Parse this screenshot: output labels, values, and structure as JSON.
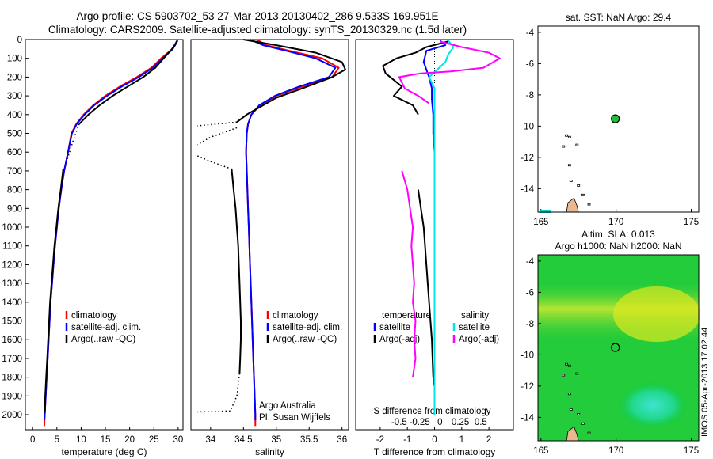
{
  "header": {
    "line1": "Argo profile: CS 5903702_53 27-Mar-2013 20130402_286 9.533S 169.951E",
    "line2": "Climatology: CARS2009. Satellite-adjusted climatology: synTS_20130329.nc (1.5d later)"
  },
  "side_note": "IMOS 05-Apr-2013 17:02:44",
  "colors": {
    "climatology": "#ff0000",
    "satellite": "#0000ff",
    "argo": "#000000",
    "sal_satellite": "#00e5e5",
    "sal_argo": "#ff00ff"
  },
  "chart_data": [
    {
      "id": "temperature",
      "type": "line",
      "xlabel": "temperature (deg C)",
      "xlim": [
        -1.5,
        31
      ],
      "xticks": [
        0,
        5,
        10,
        15,
        20,
        25,
        30
      ],
      "ylim": [
        2080,
        0
      ],
      "yticks": [
        0,
        100,
        200,
        300,
        400,
        500,
        600,
        700,
        800,
        900,
        1000,
        1100,
        1200,
        1300,
        1400,
        1500,
        1600,
        1700,
        1800,
        1900,
        2000
      ],
      "legend": [
        "climatology",
        "satellite-adj. clim.",
        "Argo(..raw -QC)"
      ],
      "series": [
        {
          "name": "climatology",
          "color": "#ff0000",
          "points": [
            [
              29.8,
              5
            ],
            [
              29.5,
              20
            ],
            [
              28.8,
              50
            ],
            [
              26.5,
              100
            ],
            [
              24.5,
              150
            ],
            [
              21.5,
              200
            ],
            [
              18.0,
              250
            ],
            [
              15.0,
              300
            ],
            [
              12.5,
              350
            ],
            [
              10.5,
              400
            ],
            [
              9.0,
              450
            ],
            [
              8.0,
              500
            ],
            [
              7.3,
              600
            ],
            [
              6.5,
              700
            ],
            [
              5.9,
              800
            ],
            [
              5.4,
              900
            ],
            [
              5.0,
              1000
            ],
            [
              4.6,
              1100
            ],
            [
              4.3,
              1200
            ],
            [
              4.0,
              1300
            ],
            [
              3.7,
              1400
            ],
            [
              3.5,
              1500
            ],
            [
              3.3,
              1600
            ],
            [
              3.1,
              1700
            ],
            [
              2.9,
              1800
            ],
            [
              2.7,
              1900
            ],
            [
              2.5,
              2000
            ],
            [
              2.4,
              2060
            ]
          ]
        },
        {
          "name": "satellite-adj. clim.",
          "color": "#0000ff",
          "points": [
            [
              29.9,
              5
            ],
            [
              29.6,
              20
            ],
            [
              28.9,
              50
            ],
            [
              26.8,
              100
            ],
            [
              24.8,
              150
            ],
            [
              21.9,
              200
            ],
            [
              18.4,
              250
            ],
            [
              15.3,
              300
            ],
            [
              12.7,
              350
            ],
            [
              10.7,
              400
            ],
            [
              9.1,
              450
            ],
            [
              8.1,
              500
            ],
            [
              7.3,
              600
            ],
            [
              6.5,
              700
            ],
            [
              5.9,
              800
            ],
            [
              5.4,
              900
            ],
            [
              5.0,
              1000
            ],
            [
              4.6,
              1100
            ],
            [
              4.3,
              1200
            ],
            [
              4.0,
              1300
            ],
            [
              3.7,
              1400
            ],
            [
              3.5,
              1500
            ],
            [
              3.3,
              1600
            ],
            [
              3.1,
              1700
            ],
            [
              2.9,
              1800
            ],
            [
              2.7,
              1900
            ],
            [
              2.5,
              2000
            ],
            [
              2.4,
              2030
            ]
          ]
        },
        {
          "name": "Argo(..raw -QC)",
          "color": "#000000",
          "points": [
            [
              29.8,
              5
            ],
            [
              29.4,
              25
            ],
            [
              28.6,
              55
            ],
            [
              27.0,
              100
            ],
            [
              25.3,
              150
            ],
            [
              22.8,
              200
            ],
            [
              19.6,
              250
            ],
            [
              16.5,
              300
            ],
            [
              13.8,
              350
            ],
            [
              11.5,
              400
            ],
            [
              9.6,
              450
            ]
          ]
        },
        {
          "name": "Argo(..raw -QC) deep",
          "color": "#000000",
          "points": [
            [
              6.3,
              690
            ],
            [
              5.8,
              800
            ],
            [
              5.3,
              900
            ],
            [
              4.9,
              1000
            ],
            [
              4.5,
              1100
            ],
            [
              4.2,
              1200
            ],
            [
              3.9,
              1300
            ],
            [
              3.6,
              1400
            ],
            [
              3.4,
              1500
            ],
            [
              3.2,
              1600
            ],
            [
              3.0,
              1700
            ],
            [
              2.8,
              1800
            ],
            [
              2.6,
              1900
            ],
            [
              2.5,
              1990
            ]
          ]
        }
      ]
    },
    {
      "id": "salinity",
      "type": "line",
      "xlabel": "salinity",
      "xlim": [
        33.7,
        36.1
      ],
      "xticks": [
        34,
        34.5,
        35,
        35.5,
        36
      ],
      "ylim": [
        2080,
        0
      ],
      "legend": [
        "climatology",
        "satellite-adj. clim.",
        "Argo(..raw -QC)"
      ],
      "annotation": [
        "Argo Australia",
        "PI: Susan Wijffels"
      ],
      "series": [
        {
          "name": "climatology",
          "color": "#ff0000",
          "points": [
            [
              34.7,
              0
            ],
            [
              34.85,
              30
            ],
            [
              35.2,
              60
            ],
            [
              35.7,
              100
            ],
            [
              35.95,
              150
            ],
            [
              35.85,
              200
            ],
            [
              35.4,
              250
            ],
            [
              35.0,
              300
            ],
            [
              34.75,
              350
            ],
            [
              34.62,
              400
            ],
            [
              34.57,
              450
            ],
            [
              34.55,
              500
            ],
            [
              34.54,
              600
            ],
            [
              34.55,
              700
            ],
            [
              34.56,
              800
            ],
            [
              34.57,
              900
            ],
            [
              34.58,
              1000
            ],
            [
              34.6,
              1200
            ],
            [
              34.62,
              1400
            ],
            [
              34.64,
              1600
            ],
            [
              34.66,
              1800
            ],
            [
              34.68,
              2000
            ],
            [
              34.68,
              2060
            ]
          ]
        },
        {
          "name": "satellite-adj. clim.",
          "color": "#0000ff",
          "points": [
            [
              34.6,
              0
            ],
            [
              34.8,
              30
            ],
            [
              35.15,
              60
            ],
            [
              35.6,
              100
            ],
            [
              35.9,
              150
            ],
            [
              35.8,
              200
            ],
            [
              35.35,
              250
            ],
            [
              34.98,
              300
            ],
            [
              34.74,
              350
            ],
            [
              34.62,
              400
            ],
            [
              34.57,
              450
            ],
            [
              34.55,
              500
            ],
            [
              34.54,
              600
            ],
            [
              34.55,
              700
            ],
            [
              34.56,
              800
            ],
            [
              34.57,
              900
            ],
            [
              34.58,
              1000
            ],
            [
              34.6,
              1200
            ],
            [
              34.62,
              1400
            ],
            [
              34.64,
              1600
            ],
            [
              34.66,
              1800
            ],
            [
              34.68,
              2000
            ],
            [
              34.68,
              2030
            ]
          ]
        },
        {
          "name": "Argo(..raw -QC)",
          "color": "#000000",
          "points": [
            [
              34.5,
              0
            ],
            [
              35.0,
              30
            ],
            [
              35.6,
              70
            ],
            [
              36.0,
              120
            ],
            [
              36.05,
              160
            ],
            [
              35.85,
              200
            ],
            [
              35.4,
              260
            ],
            [
              35.0,
              310
            ],
            [
              34.75,
              360
            ],
            [
              34.55,
              400
            ],
            [
              34.4,
              440
            ]
          ]
        },
        {
          "name": "Argo(..raw -QC) deep",
          "color": "#000000",
          "points": [
            [
              34.32,
              690
            ],
            [
              34.35,
              800
            ],
            [
              34.38,
              900
            ],
            [
              34.4,
              1000
            ],
            [
              34.42,
              1100
            ],
            [
              34.43,
              1200
            ],
            [
              34.44,
              1300
            ],
            [
              34.45,
              1400
            ],
            [
              34.46,
              1500
            ],
            [
              34.46,
              1600
            ],
            [
              34.45,
              1700
            ],
            [
              34.44,
              1780
            ]
          ]
        }
      ]
    },
    {
      "id": "difference",
      "type": "line",
      "xlabel": "T difference from climatology",
      "x2label": "S difference from climatology",
      "xlim": [
        -2.9,
        2.9
      ],
      "xticks": [
        -2,
        -1,
        0,
        1,
        2
      ],
      "x2ticks": [
        "-0.5",
        "-0.25",
        "0",
        "0.25",
        "0.5"
      ],
      "ylim": [
        2080,
        0
      ],
      "legend": [
        "temperature",
        "satellite",
        "Argo(-adj)",
        "salinity",
        "satellite",
        "Argo(-adj)"
      ],
      "series": [
        {
          "name": "temperature satellite",
          "color": "#0000ff",
          "points": [
            [
              0.2,
              5
            ],
            [
              0.4,
              30
            ],
            [
              -0.3,
              60
            ],
            [
              -0.4,
              120
            ],
            [
              -0.2,
              200
            ],
            [
              -0.1,
              260
            ],
            [
              -0.1,
              320
            ],
            [
              -0.05,
              400
            ],
            [
              -0.05,
              500
            ],
            [
              0,
              600
            ],
            [
              0,
              800
            ],
            [
              0,
              1000
            ],
            [
              0,
              1500
            ],
            [
              0,
              2000
            ]
          ]
        },
        {
          "name": "temperature Argo(-adj)",
          "color": "#000000",
          "points": [
            [
              0.5,
              10
            ],
            [
              -0.3,
              40
            ],
            [
              -0.7,
              70
            ],
            [
              -1.4,
              100
            ],
            [
              -1.9,
              140
            ],
            [
              -1.8,
              180
            ],
            [
              -1.2,
              250
            ],
            [
              -1.5,
              300
            ],
            [
              -0.8,
              350
            ],
            [
              -0.6,
              400
            ]
          ]
        },
        {
          "name": "temperature Argo(-adj) deep",
          "color": "#000000",
          "points": [
            [
              -0.6,
              800
            ],
            [
              -0.5,
              900
            ],
            [
              -0.4,
              1000
            ],
            [
              -0.35,
              1100
            ],
            [
              -0.3,
              1200
            ],
            [
              -0.2,
              1400
            ],
            [
              -0.1,
              1600
            ],
            [
              -0.05,
              1800
            ],
            [
              0,
              1850
            ]
          ]
        },
        {
          "name": "salinity satellite",
          "color": "#00e5e5",
          "points": [
            [
              0.5,
              5
            ],
            [
              0.7,
              40
            ],
            [
              0.5,
              80
            ],
            [
              0.4,
              120
            ],
            [
              0.1,
              160
            ],
            [
              -0.2,
              200
            ],
            [
              0,
              260
            ],
            [
              0,
              400
            ],
            [
              0,
              600
            ],
            [
              0,
              800
            ],
            [
              0,
              1000
            ],
            [
              0,
              1500
            ],
            [
              0,
              2000
            ]
          ]
        },
        {
          "name": "salinity Argo(-adj)",
          "color": "#ff00ff",
          "points": [
            [
              0.2,
              10
            ],
            [
              1.0,
              40
            ],
            [
              2.0,
              70
            ],
            [
              2.4,
              100
            ],
            [
              1.8,
              150
            ],
            [
              0.6,
              170
            ],
            [
              -0.5,
              180
            ],
            [
              -1.3,
              200
            ],
            [
              -1.1,
              260
            ],
            [
              -0.6,
              300
            ],
            [
              -0.2,
              340
            ]
          ]
        },
        {
          "name": "salinity Argo(-adj) deep",
          "color": "#ff00ff",
          "points": [
            [
              -1.2,
              700
            ],
            [
              -1.0,
              800
            ],
            [
              -0.9,
              900
            ],
            [
              -0.8,
              1000
            ],
            [
              -0.85,
              1100
            ],
            [
              -0.8,
              1200
            ],
            [
              -0.75,
              1300
            ],
            [
              -0.8,
              1400
            ],
            [
              -0.7,
              1500
            ],
            [
              -0.75,
              1600
            ],
            [
              -0.7,
              1700
            ],
            [
              -0.8,
              1800
            ]
          ]
        }
      ]
    },
    {
      "id": "sst-map",
      "type": "scatter",
      "title": "sat. SST: NaN Argo: 29.4",
      "xlim": [
        164.8,
        175.5
      ],
      "xticks": [
        165,
        170,
        175
      ],
      "ylim": [
        -15.5,
        -3.6
      ],
      "yticks": [
        -4,
        -6,
        -8,
        -10,
        -12,
        -14
      ],
      "profile_location": [
        169.95,
        -9.53
      ]
    },
    {
      "id": "sla-map",
      "type": "heatmap",
      "title_line1": "Altim. SLA: 0.013",
      "title_line2": "Argo h1000: NaN h2000: NaN",
      "xlim": [
        164.8,
        175.5
      ],
      "xticks": [
        165,
        170,
        175
      ],
      "ylim": [
        -15.5,
        -3.6
      ],
      "yticks": [
        -4,
        -6,
        -8,
        -10,
        -12,
        -14
      ],
      "profile_location": [
        169.95,
        -9.53
      ]
    }
  ]
}
